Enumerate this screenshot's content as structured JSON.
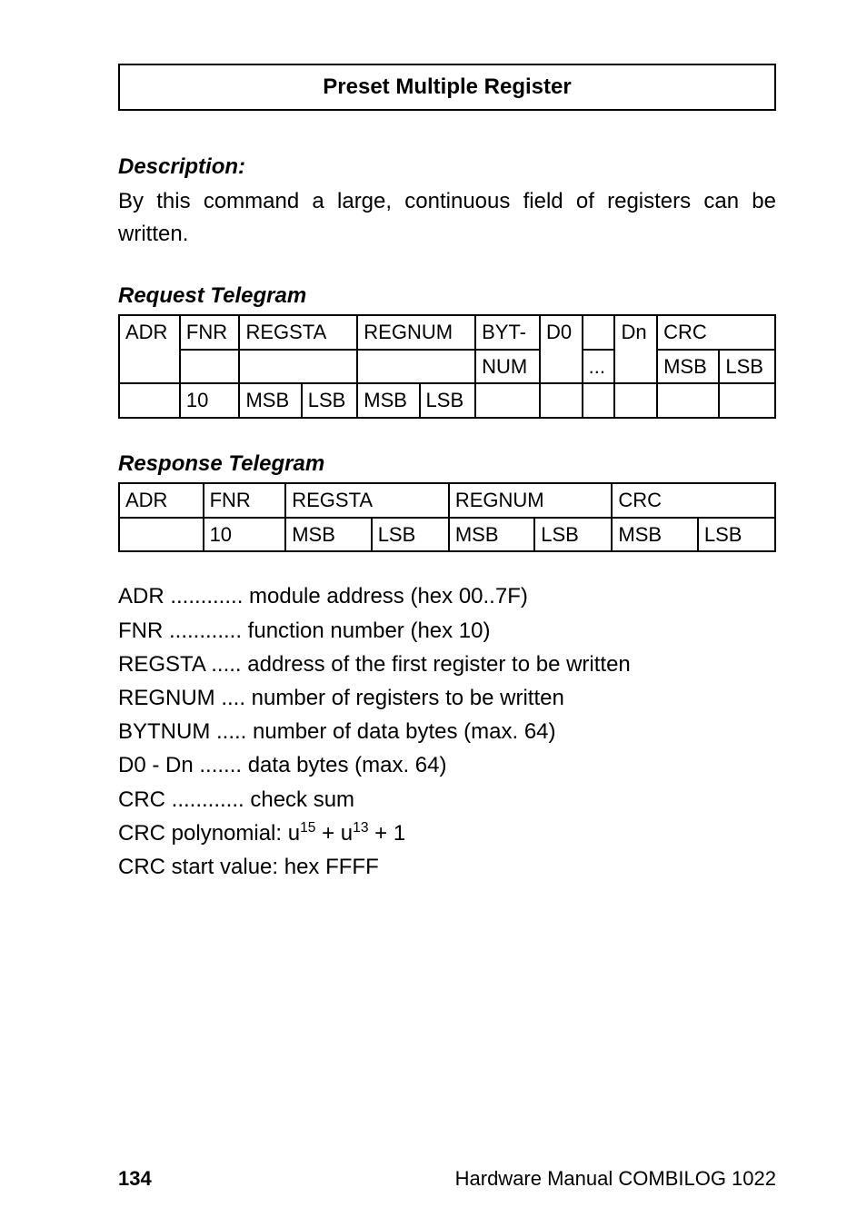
{
  "header": {
    "title": "Preset Multiple Register"
  },
  "description": {
    "heading": "Description:",
    "text": "By this command a large, continuous field of registers can be written."
  },
  "request": {
    "heading": "Request Telegram",
    "cells": {
      "c0": "ADR",
      "c1": "FNR",
      "c2": "REGSTA",
      "c3": "REGNUM",
      "c4a": "BYT-",
      "c4b": "NUM",
      "c5": "D0",
      "c6": "...",
      "c7": "Dn",
      "c8": "CRC",
      "fnr": "10",
      "s1": "MSB",
      "s2": "LSB",
      "s3": "MSB",
      "s4": "LSB",
      "s5": "MSB",
      "s6": "LSB"
    }
  },
  "response": {
    "heading": "Response Telegram",
    "cells": {
      "c0": "ADR",
      "c1": "FNR",
      "c2": "REGSTA",
      "c3": "REGNUM",
      "c4": "CRC",
      "fnr": "10",
      "s1": "MSB",
      "s2": "LSB",
      "s3": "MSB",
      "s4": "LSB",
      "s5": "MSB",
      "s6": "LSB"
    }
  },
  "defs": {
    "l0": "ADR ............ module address (hex 00..7F)",
    "l1": "FNR ............ function number (hex 10)",
    "l2": "REGSTA ..... address of the first register to be written",
    "l3": "REGNUM .... number of registers to be written",
    "l4": "BYTNUM ..... number of data bytes (max. 64)",
    "l5": "D0 - Dn ....... data bytes (max. 64)",
    "l6": "CRC ............ check sum",
    "l7a": "CRC polynomial: u",
    "l7b": " + u",
    "l7c": " + 1",
    "exp1": "15",
    "exp2": "13",
    "l8": "CRC start value: hex FFFF"
  },
  "footer": {
    "page": "134",
    "title": "Hardware Manual COMBILOG 1022"
  }
}
